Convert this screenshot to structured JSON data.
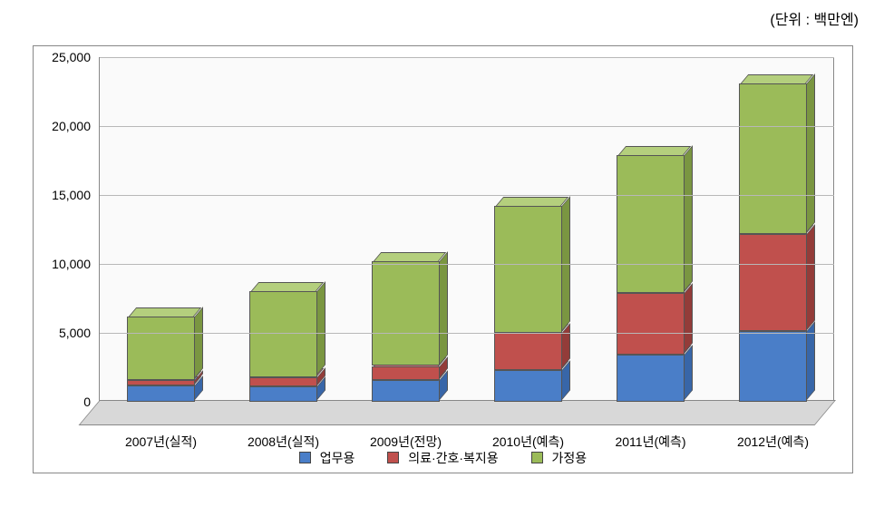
{
  "unit_label": "(단위 : 백만엔)",
  "chart": {
    "type": "stacked-bar-3d",
    "background_color": "#ffffff",
    "wall_color": "#fafafa",
    "floor_color": "#d8d8d8",
    "grid_color": "#b8b8b8",
    "axis_color": "#888888",
    "y_axis": {
      "min": 0,
      "max": 25000,
      "tick_step": 5000,
      "tick_labels": [
        "0",
        "5,000",
        "10,000",
        "15,000",
        "20,000",
        "25,000"
      ],
      "label_fontsize": 14
    },
    "x_labels": [
      "2007년(실적)",
      "2008년(실적)",
      "2009년(전망)",
      "2010년(예측)",
      "2011년(예측)",
      "2012년(예측)"
    ],
    "x_label_fontsize": 14,
    "bar_width_ratio": 0.55,
    "series": [
      {
        "key": "business",
        "label": "업무용",
        "color": "#4a7ec8",
        "top_color": "#6a97d6",
        "side_color": "#3866a8"
      },
      {
        "key": "medical",
        "label": "의료·간호·복지용",
        "color": "#c0504d",
        "top_color": "#d47876",
        "side_color": "#933c39"
      },
      {
        "key": "home",
        "label": "가정용",
        "color": "#9bbb59",
        "top_color": "#b4cf7d",
        "side_color": "#7a9641"
      }
    ],
    "data": [
      {
        "business": 1200,
        "medical": 400,
        "home": 4600
      },
      {
        "business": 1100,
        "medical": 700,
        "home": 6200
      },
      {
        "business": 1600,
        "medical": 1000,
        "home": 7600
      },
      {
        "business": 2300,
        "medical": 2700,
        "home": 9200
      },
      {
        "business": 3400,
        "medical": 4500,
        "home": 10000
      },
      {
        "business": 5100,
        "medical": 7100,
        "home": 10900
      }
    ],
    "legend_fontsize": 14,
    "legend_swatch_size": 11
  }
}
